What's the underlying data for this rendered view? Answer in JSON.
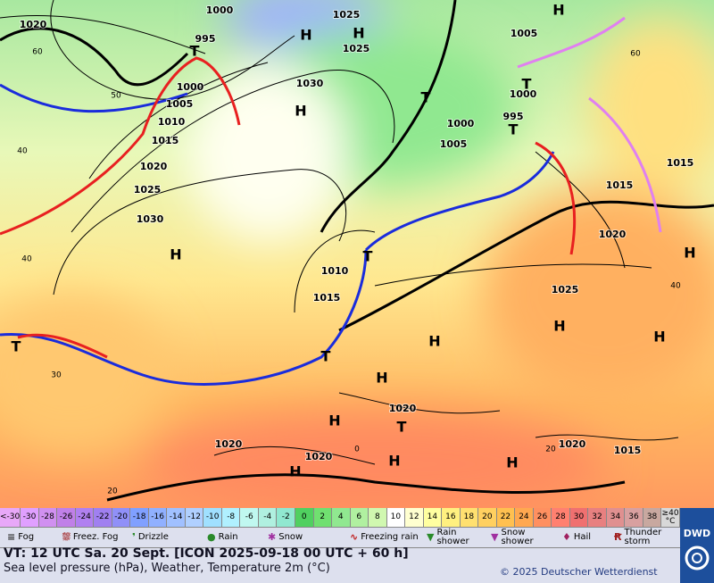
{
  "map": {
    "isobar_labels": [
      "1020",
      "1000",
      "1025",
      "1005",
      "995",
      "1000",
      "1005",
      "1010",
      "1015",
      "1020",
      "1025",
      "1030",
      "1030",
      "1000",
      "995",
      "1000",
      "1005",
      "1015",
      "1015",
      "1020",
      "1025",
      "1010",
      "1015",
      "1020",
      "1020",
      "1015",
      "1020",
      "1020",
      "1025"
    ],
    "centers": [
      "H",
      "H",
      "T",
      "H",
      "T",
      "T",
      "T",
      "H",
      "T",
      "H",
      "H",
      "H",
      "H",
      "T",
      "T",
      "H",
      "H",
      "T",
      "H",
      "H",
      "H",
      "H"
    ],
    "grid_labels": [
      "60",
      "50",
      "40",
      "40",
      "30",
      "20",
      "60",
      "40",
      "20",
      "0"
    ]
  },
  "scale": {
    "cells": [
      {
        "label": "<-30",
        "color": "#e8a8f8"
      },
      {
        "label": "-30",
        "color": "#e0a0ff"
      },
      {
        "label": "-28",
        "color": "#d090f0"
      },
      {
        "label": "-26",
        "color": "#c080e8"
      },
      {
        "label": "-24",
        "color": "#b080f0"
      },
      {
        "label": "-22",
        "color": "#a080f0"
      },
      {
        "label": "-20",
        "color": "#9090f8"
      },
      {
        "label": "-18",
        "color": "#80a0ff"
      },
      {
        "label": "-16",
        "color": "#90b0ff"
      },
      {
        "label": "-14",
        "color": "#a0c0ff"
      },
      {
        "label": "-12",
        "color": "#b0d0ff"
      },
      {
        "label": "-10",
        "color": "#a0e0ff"
      },
      {
        "label": "-8",
        "color": "#b0f0ff"
      },
      {
        "label": "-6",
        "color": "#c0f8f0"
      },
      {
        "label": "-4",
        "color": "#b0f0e0"
      },
      {
        "label": "-2",
        "color": "#90e8d0"
      },
      {
        "label": "0",
        "color": "#50d060"
      },
      {
        "label": "2",
        "color": "#70e070"
      },
      {
        "label": "4",
        "color": "#90e890"
      },
      {
        "label": "6",
        "color": "#b0f0a0"
      },
      {
        "label": "8",
        "color": "#d0f8b0"
      },
      {
        "label": "10",
        "color": "#ffffff"
      },
      {
        "label": "12",
        "color": "#ffffd0"
      },
      {
        "label": "14",
        "color": "#ffffa0"
      },
      {
        "label": "16",
        "color": "#fff080"
      },
      {
        "label": "18",
        "color": "#ffe070"
      },
      {
        "label": "20",
        "color": "#ffd060"
      },
      {
        "label": "22",
        "color": "#ffc050"
      },
      {
        "label": "24",
        "color": "#ffa850"
      },
      {
        "label": "26",
        "color": "#ff9060"
      },
      {
        "label": "28",
        "color": "#ff8070"
      },
      {
        "label": "30",
        "color": "#f07070"
      },
      {
        "label": "32",
        "color": "#e88080"
      },
      {
        "label": "34",
        "color": "#e09090"
      },
      {
        "label": "36",
        "color": "#d8a0a0"
      },
      {
        "label": "38",
        "color": "#c8a8a0"
      },
      {
        "label": "≥40 °C",
        "color": "#d8d8d8"
      }
    ]
  },
  "legend": [
    "Fog",
    "Freez. Fog",
    "Drizzle",
    "Rain",
    "Snow",
    "Freezing rain",
    "Rain shower",
    "Snow shower",
    "Hail",
    "Thunder storm"
  ],
  "footer": {
    "valid_time": "VT: 12 UTC Sa.  20 Sept. [ICON 2025-09-18  00 UTC + 60 h]",
    "description": "Sea level pressure (hPa), Weather, Temperature 2m (°C)",
    "copyright": "© 2025 Deutscher Wetterdienst",
    "logo": "DWD"
  }
}
